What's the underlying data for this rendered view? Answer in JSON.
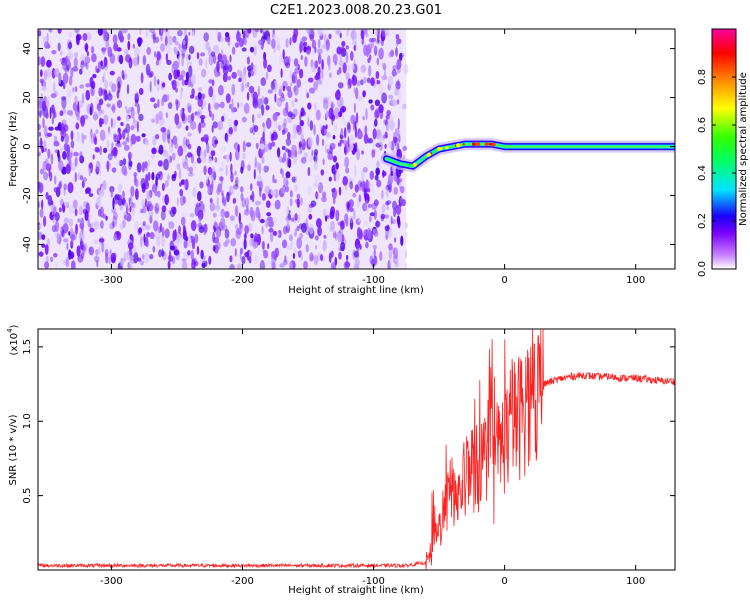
{
  "title": "C2E1.2023.008.20.23.G01",
  "chart_data": [
    {
      "type": "heatmap",
      "xlabel": "Height of straight line (km)",
      "ylabel": "Frequency (Hz)",
      "xlim": [
        -356,
        130
      ],
      "ylim": [
        -50,
        48
      ],
      "xticks": [
        -300,
        -200,
        -100,
        0,
        100
      ],
      "yticks": [
        -40,
        -20,
        0,
        20,
        40
      ],
      "noise_region_x": [
        -356,
        -75
      ],
      "signal_line": {
        "x_start": -90,
        "x_end": 130,
        "freq_points": [
          [
            -90,
            -5
          ],
          [
            -80,
            -7
          ],
          [
            -70,
            -8
          ],
          [
            -60,
            -4
          ],
          [
            -50,
            -1
          ],
          [
            -40,
            0
          ],
          [
            -30,
            1
          ],
          [
            -20,
            1
          ],
          [
            -10,
            1
          ],
          [
            0,
            0
          ],
          [
            50,
            0
          ],
          [
            130,
            0
          ]
        ]
      },
      "colorbar": {
        "label": "Normalized spectral amplitude",
        "range": [
          0.0,
          1.0
        ],
        "ticks": [
          "0.0",
          "0.2",
          "0.4",
          "0.6",
          "0.8"
        ],
        "colors": [
          "#ffffff",
          "#7a00ff",
          "#0000ff",
          "#00e5ff",
          "#00ff00",
          "#ffff00",
          "#ff8000",
          "#ff0000",
          "#ff00a0"
        ]
      }
    },
    {
      "type": "line",
      "xlabel": "Height of straight line (km)",
      "ylabel": "SNR (10 * v/v)",
      "yscale_label": "(x10",
      "yscale_exp": "4",
      "yscale_close": ")",
      "xlim": [
        -356,
        130
      ],
      "ylim": [
        0,
        1.62
      ],
      "xticks": [
        -300,
        -200,
        -100,
        0,
        100
      ],
      "yticks": [
        "0.5",
        "1.0",
        "1.5"
      ],
      "series": [
        {
          "color": "#ff2020",
          "x": [
            -356,
            -300,
            -250,
            -200,
            -150,
            -100,
            -75,
            -60,
            -55,
            -50,
            -45,
            -40,
            -35,
            -30,
            -25,
            -20,
            -15,
            -10,
            -5,
            0,
            5,
            10,
            15,
            20,
            25,
            30,
            40,
            50,
            60,
            70,
            80,
            90,
            100,
            110,
            120,
            130
          ],
          "y": [
            0.03,
            0.03,
            0.03,
            0.03,
            0.03,
            0.03,
            0.03,
            0.05,
            0.12,
            0.28,
            0.42,
            0.55,
            0.48,
            0.62,
            0.7,
            0.66,
            0.78,
            0.85,
            0.8,
            0.88,
            0.98,
            1.02,
            1.08,
            1.14,
            1.2,
            1.25,
            1.28,
            1.3,
            1.31,
            1.3,
            1.3,
            1.29,
            1.29,
            1.28,
            1.27,
            1.27
          ]
        }
      ]
    }
  ]
}
